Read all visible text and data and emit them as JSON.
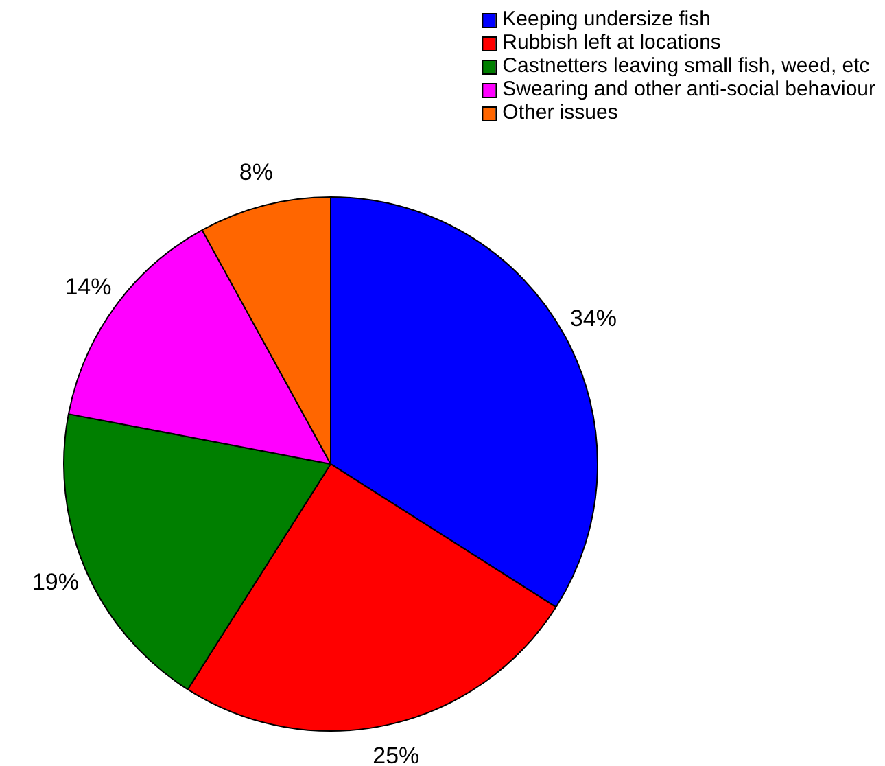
{
  "chart_data": {
    "type": "pie",
    "categories": [
      "Keeping undersize fish",
      "Rubbish left at locations",
      "Castnetters leaving small fish, weed, etc",
      "Swearing and other anti-social behaviour",
      "Other issues"
    ],
    "values": [
      34,
      25,
      19,
      14,
      8
    ],
    "colors": [
      "#0000ff",
      "#ff0000",
      "#007f00",
      "#ff00ff",
      "#ff6600"
    ],
    "value_labels": [
      "34%",
      "25%",
      "19%",
      "14%",
      "8%"
    ],
    "legend": "top right"
  }
}
